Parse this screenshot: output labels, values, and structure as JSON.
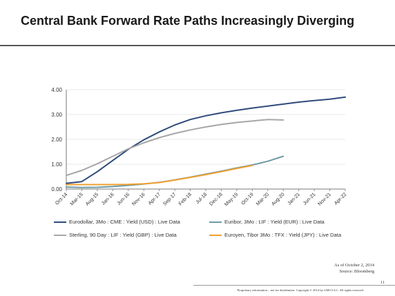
{
  "slide": {
    "title": "Central Bank Forward Rate Paths Increasingly Diverging",
    "as_of": "As of October 2, 2014",
    "source": "Source: Bloomberg",
    "page_number": "11",
    "disclaimer": "Proprietary information – not for distribution. Copyright © 2014 by GMO LLC. All rights reserved."
  },
  "chart_data": {
    "type": "line",
    "title": "",
    "xlabel": "",
    "ylabel": "",
    "ylim": [
      0,
      4
    ],
    "yticks": [
      "0.00",
      "1.00",
      "2.00",
      "3.00",
      "4.00"
    ],
    "x_ticks": [
      "Oct-14",
      "Mar-15",
      "Aug-15",
      "Jan-16",
      "Jun-16",
      "Nov-16",
      "Apr-17",
      "Sep-17",
      "Feb-18",
      "Jul-18",
      "Dec-18",
      "May-19",
      "Oct-19",
      "Mar-20",
      "Aug-20",
      "Jan-21",
      "Jun-21",
      "Nov-21",
      "Apr-22"
    ],
    "grid": "horizontal",
    "legend_position": "bottom",
    "series": [
      {
        "name": "Eurodollar, 3Mo : CME : Yield (USD) : Live Data",
        "color": "#2e4a7a",
        "points": [
          [
            0,
            0.23
          ],
          [
            1,
            0.3
          ],
          [
            2,
            0.7
          ],
          [
            3,
            1.15
          ],
          [
            4,
            1.6
          ],
          [
            5,
            1.98
          ],
          [
            6,
            2.3
          ],
          [
            7,
            2.58
          ],
          [
            8,
            2.8
          ],
          [
            9,
            2.95
          ],
          [
            10,
            3.07
          ],
          [
            11,
            3.17
          ],
          [
            12,
            3.26
          ],
          [
            13,
            3.34
          ],
          [
            14,
            3.42
          ],
          [
            15,
            3.5
          ],
          [
            16,
            3.56
          ],
          [
            17,
            3.62
          ],
          [
            18,
            3.7
          ]
        ]
      },
      {
        "name": "Euribor, 3Mo : LIF : Yield (EUR) : Live Data",
        "color": "#6e9aa6",
        "points": [
          [
            0,
            0.08
          ],
          [
            1,
            0.06
          ],
          [
            2,
            0.07
          ],
          [
            3,
            0.1
          ],
          [
            4,
            0.15
          ],
          [
            5,
            0.2
          ],
          [
            6,
            0.27
          ],
          [
            7,
            0.37
          ],
          [
            8,
            0.48
          ],
          [
            9,
            0.6
          ],
          [
            10,
            0.72
          ],
          [
            11,
            0.85
          ],
          [
            12,
            0.97
          ],
          [
            13,
            1.12
          ],
          [
            14,
            1.32
          ]
        ]
      },
      {
        "name": "Sterling, 90 Day : LIF : Yield (GBP) : Live Data",
        "color": "#a6a6a6",
        "points": [
          [
            0,
            0.55
          ],
          [
            1,
            0.75
          ],
          [
            2,
            1.02
          ],
          [
            3,
            1.32
          ],
          [
            4,
            1.62
          ],
          [
            5,
            1.86
          ],
          [
            6,
            2.07
          ],
          [
            7,
            2.24
          ],
          [
            8,
            2.38
          ],
          [
            9,
            2.5
          ],
          [
            10,
            2.6
          ],
          [
            11,
            2.68
          ],
          [
            12,
            2.74
          ],
          [
            13,
            2.8
          ],
          [
            14,
            2.78
          ]
        ]
      },
      {
        "name": "Euroyen, Tibor 3Mo : TFX : Yield (JPY) : Live Data",
        "color": "#f0a030",
        "points": [
          [
            0,
            0.18
          ],
          [
            1,
            0.18
          ],
          [
            2,
            0.18
          ],
          [
            3,
            0.18
          ],
          [
            4,
            0.19
          ],
          [
            5,
            0.21
          ],
          [
            6,
            0.26
          ],
          [
            7,
            0.36
          ],
          [
            8,
            0.47
          ],
          [
            9,
            0.58
          ],
          [
            10,
            0.7
          ],
          [
            11,
            0.83
          ],
          [
            12,
            0.95
          ]
        ]
      }
    ]
  }
}
